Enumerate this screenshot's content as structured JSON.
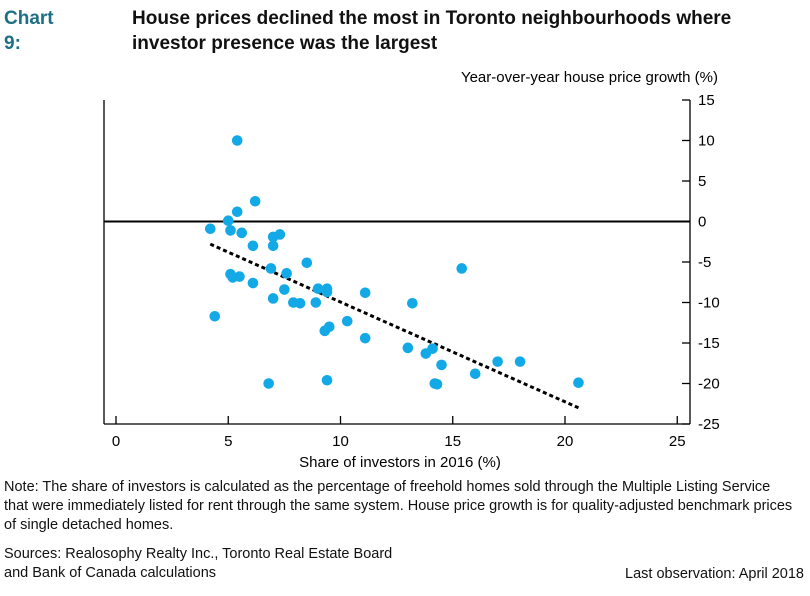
{
  "chart_data": {
    "type": "scatter",
    "label": "Chart 9:",
    "title": "House prices declined the most in Toronto neighbourhoods where investor presence was the largest",
    "xlabel": "Share of investors in 2016 (%)",
    "ylabel": "Year-over-year house price growth (%)",
    "xlim": [
      -0.5,
      25
    ],
    "ylim": [
      -25,
      15
    ],
    "xticks": [
      0,
      5,
      10,
      15,
      20,
      25
    ],
    "yticks": [
      15,
      10,
      5,
      0,
      -5,
      -10,
      -15,
      -20,
      -25
    ],
    "series": [
      {
        "name": "Neighbourhoods",
        "color": "#13a9e6",
        "points": [
          [
            4.2,
            -0.9
          ],
          [
            5.4,
            10.0
          ],
          [
            6.2,
            2.5
          ],
          [
            5.4,
            1.2
          ],
          [
            5.0,
            0.1
          ],
          [
            5.1,
            -1.1
          ],
          [
            5.6,
            -1.4
          ],
          [
            6.1,
            -3.0
          ],
          [
            7.0,
            -1.9
          ],
          [
            7.3,
            -1.6
          ],
          [
            7.0,
            -3.0
          ],
          [
            5.1,
            -6.5
          ],
          [
            5.2,
            -6.9
          ],
          [
            5.5,
            -6.8
          ],
          [
            6.1,
            -7.6
          ],
          [
            6.9,
            -5.8
          ],
          [
            7.6,
            -6.4
          ],
          [
            8.5,
            -5.1
          ],
          [
            7.5,
            -8.4
          ],
          [
            7.0,
            -9.5
          ],
          [
            7.9,
            -10.0
          ],
          [
            8.2,
            -10.1
          ],
          [
            8.9,
            -10.0
          ],
          [
            9.0,
            -8.3
          ],
          [
            9.4,
            -8.3
          ],
          [
            9.4,
            -8.7
          ],
          [
            4.4,
            -11.7
          ],
          [
            9.3,
            -13.5
          ],
          [
            9.5,
            -13.0
          ],
          [
            10.3,
            -12.3
          ],
          [
            11.1,
            -14.4
          ],
          [
            11.1,
            -8.8
          ],
          [
            6.8,
            -20.0
          ],
          [
            9.4,
            -19.6
          ],
          [
            13.2,
            -10.1
          ],
          [
            13.0,
            -15.6
          ],
          [
            13.8,
            -16.3
          ],
          [
            14.1,
            -15.7
          ],
          [
            14.5,
            -17.7
          ],
          [
            14.2,
            -20.0
          ],
          [
            14.3,
            -20.1
          ],
          [
            15.4,
            -5.8
          ],
          [
            16.0,
            -18.8
          ],
          [
            17.0,
            -17.3
          ],
          [
            18.0,
            -17.3
          ],
          [
            20.6,
            -19.9
          ]
        ]
      }
    ],
    "trendline": {
      "from": [
        4.2,
        -2.8
      ],
      "to": [
        20.6,
        -23.0
      ]
    },
    "zero_line": 0
  },
  "note": "Note: The share of investors is calculated as the percentage of freehold homes sold through the Multiple Listing Service that were immediately listed for rent through the same system. House price growth is for quality-adjusted benchmark prices of single detached homes.",
  "sources_line1": "Sources: Realosophy Realty Inc., Toronto Real Estate Board",
  "sources_line2": "and Bank of Canada calculations",
  "last_observation": "Last observation: April 2018"
}
